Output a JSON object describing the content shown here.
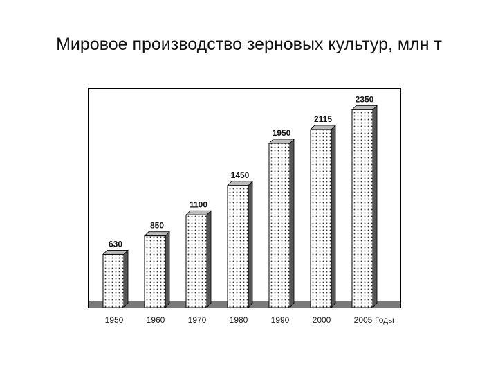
{
  "title": "Мировое производство зерновых культур, млн т",
  "chart_data": {
    "type": "bar",
    "title": "Мировое производство зерновых культур, млн т",
    "categories": [
      "1950",
      "1960",
      "1970",
      "1980",
      "1990",
      "2000",
      "2005"
    ],
    "values": [
      630,
      850,
      1100,
      1450,
      1950,
      2115,
      2350
    ],
    "data_labels": [
      "630",
      "850",
      "1100",
      "1450",
      "1950",
      "2115",
      "2350"
    ],
    "xlabel": "Годы",
    "ylabel": "",
    "ylim": [
      0,
      2600
    ],
    "grid": false,
    "legend": "none",
    "bar_style": "dotted-3d",
    "colors": {
      "bar_fill": "#ffffff",
      "bar_dots": "#333333",
      "bar_side": "#555555",
      "bar_top": "#bbbbbb",
      "floor": "#7a7a7a",
      "frame": "#000000"
    }
  }
}
